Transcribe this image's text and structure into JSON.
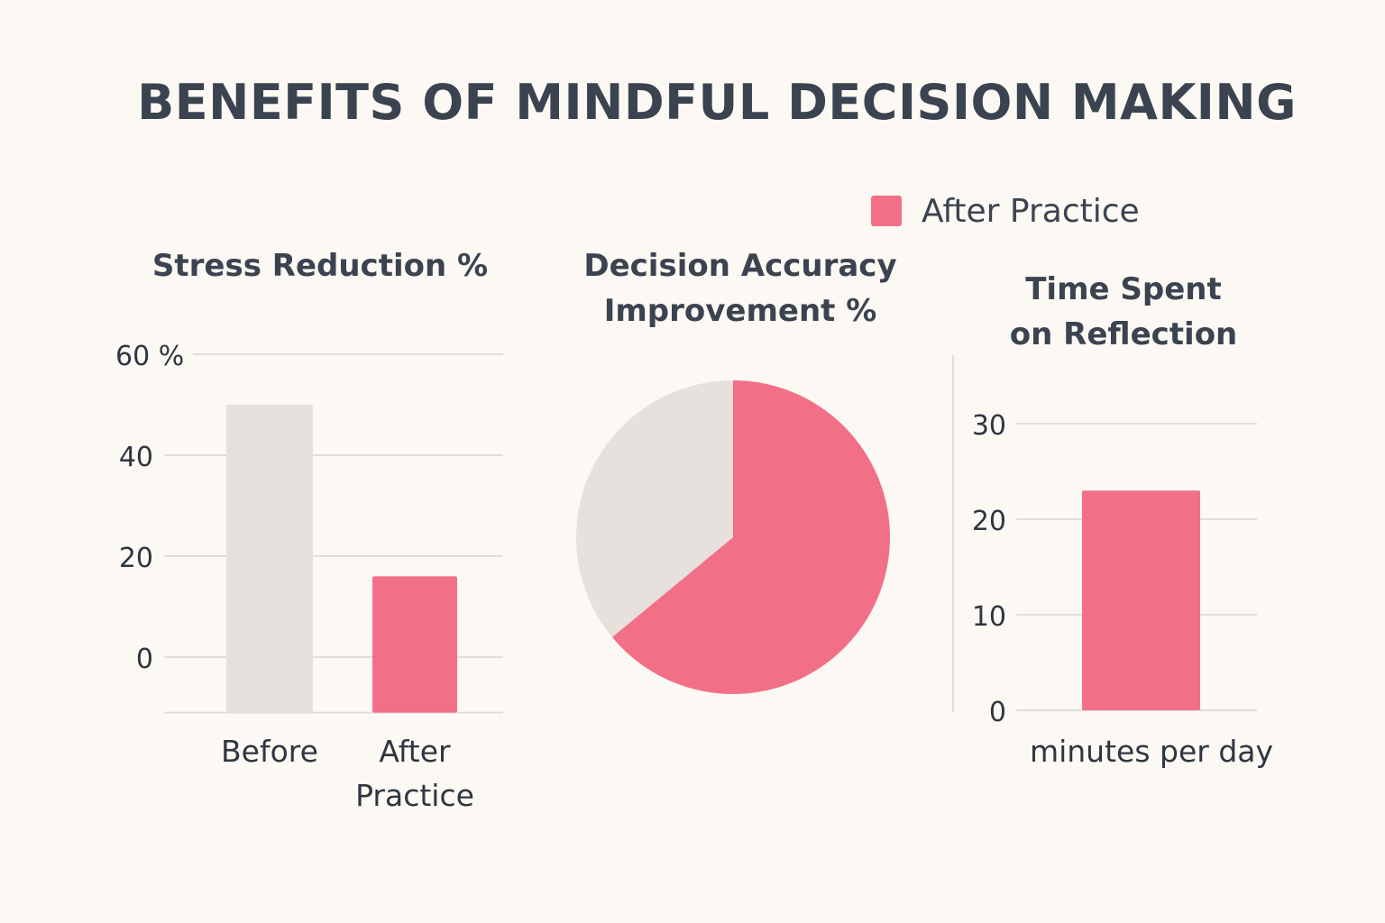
{
  "title": "BENEFITS OF MINDFUL DECISION MAKING",
  "legend": {
    "label": "After Practice",
    "color": "#f27087"
  },
  "colors": {
    "before": "#e6e1dc",
    "after": "#f27087",
    "grid": "#e2ddd8",
    "text": "#3b4350"
  },
  "chart_data": [
    {
      "type": "bar",
      "title": "Stress Reduction %",
      "categories": [
        "Before",
        "After\nPractice"
      ],
      "values": [
        50,
        16
      ],
      "yticks": [
        "60 %",
        "40",
        "20",
        "0"
      ],
      "ytick_values": [
        60,
        40,
        20,
        0
      ],
      "ylim": [
        -11,
        60
      ],
      "grid": true
    },
    {
      "type": "pie",
      "title": "Decision Accuracy\nImprovement %",
      "slices": [
        {
          "label": "After Practice",
          "value": 64,
          "color": "#f27087"
        },
        {
          "label": "Before",
          "value": 36,
          "color": "#e6e1dc"
        }
      ]
    },
    {
      "type": "bar",
      "title": "Time Spent\non Reflection",
      "categories": [
        "minutes per day"
      ],
      "values": [
        23
      ],
      "yticks": [
        "30",
        "20",
        "10",
        "0"
      ],
      "ytick_values": [
        30,
        20,
        10,
        0
      ],
      "ylim": [
        0,
        30
      ],
      "grid": true
    }
  ]
}
